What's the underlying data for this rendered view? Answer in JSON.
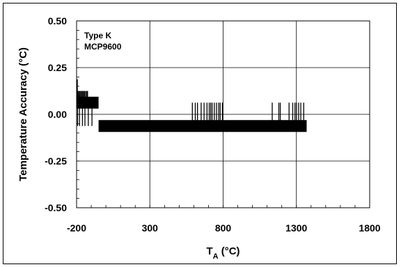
{
  "chart_data": {
    "type": "line",
    "annotations": [
      "Type K",
      "MCP9600"
    ],
    "ylabel": "Temperature Accuracy (°C)",
    "xlabel_main": "T",
    "xlabel_sub": "A",
    "xlabel_unit": " (°C)",
    "xlim": [
      -200,
      1800
    ],
    "ylim": [
      -0.5,
      0.5
    ],
    "x_ticks": [
      -200,
      300,
      800,
      1300,
      1800
    ],
    "x_tick_labels": [
      "-200",
      "300",
      "800",
      "1300",
      "1800"
    ],
    "y_ticks": [
      0.5,
      0.25,
      0.0,
      -0.25,
      -0.5
    ],
    "y_tick_labels": [
      "0.50",
      "0.25",
      "0.00",
      "-0.25",
      "-0.50"
    ],
    "grid": true,
    "series": [
      {
        "x_range": [
          -200,
          1370
        ],
        "base_levels": [
          {
            "x": [
              -200,
              -50
            ],
            "y": 0.0625
          },
          {
            "x": [
              -50,
              1370
            ],
            "y": -0.0625
          }
        ],
        "spikes_up": [
          {
            "x": -195,
            "y": 0.1875
          },
          {
            "x": -190,
            "y": 0.125
          },
          {
            "x": -185,
            "y": 0.125
          },
          {
            "x": -178,
            "y": 0.125
          },
          {
            "x": -172,
            "y": 0.125
          },
          {
            "x": -165,
            "y": 0.125
          },
          {
            "x": -158,
            "y": 0.125
          },
          {
            "x": -152,
            "y": 0.125
          },
          {
            "x": -145,
            "y": 0.125
          },
          {
            "x": -138,
            "y": 0.125
          },
          {
            "x": -130,
            "y": 0.125
          },
          {
            "x": -125,
            "y": 0.125
          },
          {
            "x": 590,
            "y": 0.0625
          },
          {
            "x": 610,
            "y": 0.0625
          },
          {
            "x": 625,
            "y": 0.0625
          },
          {
            "x": 650,
            "y": 0.0625
          },
          {
            "x": 670,
            "y": 0.0625
          },
          {
            "x": 690,
            "y": 0.0625
          },
          {
            "x": 705,
            "y": 0.0625
          },
          {
            "x": 715,
            "y": 0.0625
          },
          {
            "x": 725,
            "y": 0.0625
          },
          {
            "x": 740,
            "y": 0.0625
          },
          {
            "x": 755,
            "y": 0.0625
          },
          {
            "x": 770,
            "y": 0.0625
          },
          {
            "x": 780,
            "y": 0.0625
          },
          {
            "x": 795,
            "y": 0.0625
          },
          {
            "x": 1135,
            "y": 0.0625
          },
          {
            "x": 1180,
            "y": 0.0625
          },
          {
            "x": 1190,
            "y": 0.0625
          },
          {
            "x": 1250,
            "y": 0.0625
          },
          {
            "x": 1275,
            "y": 0.0625
          },
          {
            "x": 1290,
            "y": 0.0625
          },
          {
            "x": 1300,
            "y": 0.0625
          },
          {
            "x": 1315,
            "y": 0.0625
          },
          {
            "x": 1330,
            "y": 0.0625
          },
          {
            "x": 1350,
            "y": 0.0625
          }
        ],
        "spikes_down": [
          {
            "x": -193,
            "y": -0.0625
          },
          {
            "x": -180,
            "y": -0.0625
          },
          {
            "x": -160,
            "y": -0.0625
          },
          {
            "x": -143,
            "y": -0.0625
          },
          {
            "x": -120,
            "y": -0.0625
          },
          {
            "x": -95,
            "y": -0.0625
          }
        ]
      }
    ]
  }
}
